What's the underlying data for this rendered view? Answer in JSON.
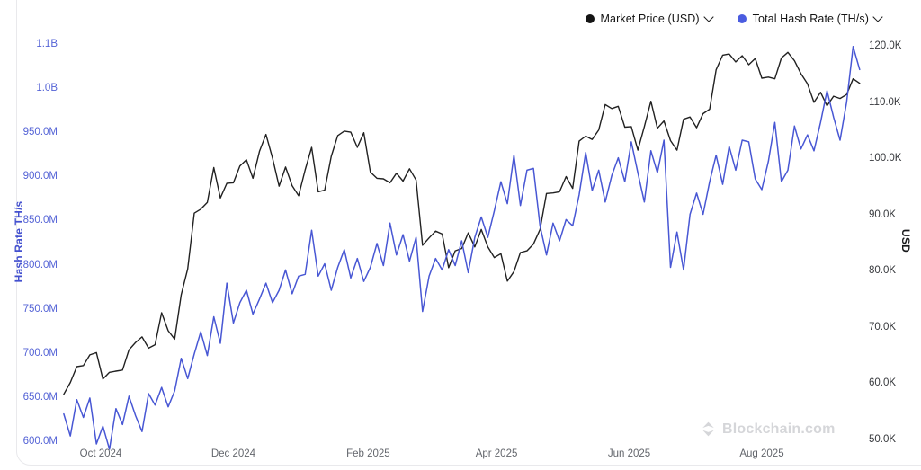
{
  "legend": {
    "items": [
      {
        "name": "market-price",
        "label": "Market Price (USD)",
        "dot_color": "#141414"
      },
      {
        "name": "total-hash-rate",
        "label": "Total Hash Rate (TH/s)",
        "dot_color": "#4a5ce0"
      }
    ]
  },
  "watermark": {
    "text": "Blockchain.com",
    "logo": "blockchain-diamond-icon",
    "color": "#d5d6d9"
  },
  "left_axis": {
    "title": "Hash Rate TH/s",
    "color": "#5463d6",
    "ticks": [
      {
        "label": "1.1B",
        "value": 1050
      },
      {
        "label": "1.0B",
        "value": 1000
      },
      {
        "label": "950.0M",
        "value": 950
      },
      {
        "label": "900.0M",
        "value": 900
      },
      {
        "label": "850.0M",
        "value": 850
      },
      {
        "label": "800.0M",
        "value": 800
      },
      {
        "label": "750.0M",
        "value": 750
      },
      {
        "label": "700.0M",
        "value": 700
      },
      {
        "label": "650.0M",
        "value": 650
      },
      {
        "label": "600.0M",
        "value": 600
      }
    ]
  },
  "right_axis": {
    "title": "USD",
    "color": "#36383c",
    "ticks": [
      {
        "label": "120.0K",
        "value": 120
      },
      {
        "label": "110.0K",
        "value": 110
      },
      {
        "label": "100.0K",
        "value": 100
      },
      {
        "label": "90.0K",
        "value": 90
      },
      {
        "label": "80.0K",
        "value": 80
      },
      {
        "label": "70.0K",
        "value": 70
      },
      {
        "label": "60.0K",
        "value": 60
      },
      {
        "label": "50.0K",
        "value": 50
      }
    ]
  },
  "x_axis": {
    "ticks": [
      {
        "label": "Oct 2024",
        "date": "2024-10-01"
      },
      {
        "label": "Dec 2024",
        "date": "2024-12-01"
      },
      {
        "label": "Feb 2025",
        "date": "2025-02-01"
      },
      {
        "label": "Apr 2025",
        "date": "2025-04-01"
      },
      {
        "label": "Jun 2025",
        "date": "2025-06-01"
      },
      {
        "label": "Aug 2025",
        "date": "2025-08-01"
      }
    ]
  },
  "chart_data": {
    "type": "line",
    "title": "",
    "grid": false,
    "legend_position": "top-right",
    "x_range": [
      "2024-09-14",
      "2025-09-15"
    ],
    "usd_axis": {
      "ylabel": "USD",
      "ylim": [
        50,
        120
      ],
      "unit": "K USD"
    },
    "hash_axis": {
      "ylabel": "Hash Rate TH/s",
      "ylim": [
        600,
        1050
      ],
      "unit": "M TH/s"
    },
    "series": [
      {
        "name": "Market Price (USD)",
        "axis": "usd",
        "color": "#212121",
        "unit": "thousand USD",
        "start": "2024-09-14",
        "step_days": 3,
        "values": [
          58.2,
          60.3,
          63.1,
          63.3,
          65.2,
          65.6,
          60.9,
          62.1,
          62.3,
          62.5,
          66.1,
          67.4,
          68.4,
          66.4,
          67.0,
          72.7,
          69.5,
          68.0,
          75.9,
          80.5,
          90.4,
          91.1,
          92.3,
          98.5,
          93.1,
          95.7,
          95.8,
          98.8,
          99.9,
          96.6,
          101.4,
          104.4,
          100.2,
          95.2,
          98.6,
          95.3,
          93.5,
          98.1,
          102.1,
          94.2,
          94.5,
          100.5,
          104.2,
          105.0,
          104.8,
          102.1,
          104.7,
          97.7,
          96.6,
          96.5,
          95.8,
          97.5,
          96.1,
          98.3,
          96.3,
          84.7,
          86.0,
          87.2,
          86.7,
          80.7,
          83.7,
          84.1,
          86.9,
          84.4,
          87.5,
          84.4,
          82.5,
          83.2,
          78.3,
          80.0,
          83.4,
          83.7,
          84.9,
          87.5,
          93.9,
          94.0,
          94.2,
          96.9,
          94.8,
          103.2,
          104.1,
          103.5,
          105.2,
          109.7,
          109.0,
          109.4,
          105.7,
          105.8,
          101.6,
          105.8,
          110.3,
          105.5,
          106.8,
          103.3,
          101.6,
          107.1,
          107.5,
          105.6,
          108.1,
          108.9,
          115.9,
          118.5,
          118.7,
          117.3,
          118.4,
          116.8,
          117.9,
          114.4,
          114.6,
          114.3,
          118.0,
          119.0,
          117.5,
          115.2,
          113.4,
          110.1,
          111.9,
          109.5,
          111.2,
          110.8,
          111.5,
          114.3,
          113.5
        ]
      },
      {
        "name": "Total Hash Rate (TH/s)",
        "axis": "hash",
        "color": "#4857d4",
        "unit": "million TH/s",
        "start": "2024-09-14",
        "step_days": 3,
        "values": [
          632,
          607,
          648,
          628,
          650,
          598,
          618,
          592,
          638,
          620,
          652,
          630,
          612,
          655,
          642,
          662,
          640,
          658,
          695,
          672,
          700,
          725,
          698,
          742,
          712,
          780,
          735,
          758,
          772,
          745,
          762,
          780,
          758,
          772,
          795,
          768,
          788,
          790,
          840,
          788,
          802,
          772,
          798,
          818,
          786,
          808,
          782,
          798,
          825,
          800,
          848,
          812,
          835,
          805,
          832,
          748,
          788,
          808,
          795,
          818,
          800,
          828,
          792,
          832,
          855,
          832,
          862,
          895,
          870,
          925,
          868,
          908,
          910,
          845,
          812,
          848,
          828,
          852,
          845,
          880,
          928,
          885,
          908,
          872,
          902,
          922,
          895,
          940,
          905,
          872,
          930,
          905,
          942,
          798,
          838,
          795,
          858,
          882,
          858,
          895,
          925,
          892,
          935,
          908,
          942,
          940,
          898,
          886,
          918,
          962,
          895,
          908,
          958,
          932,
          948,
          930,
          962,
          998,
          968,
          942,
          985,
          1048,
          1022
        ]
      }
    ]
  }
}
